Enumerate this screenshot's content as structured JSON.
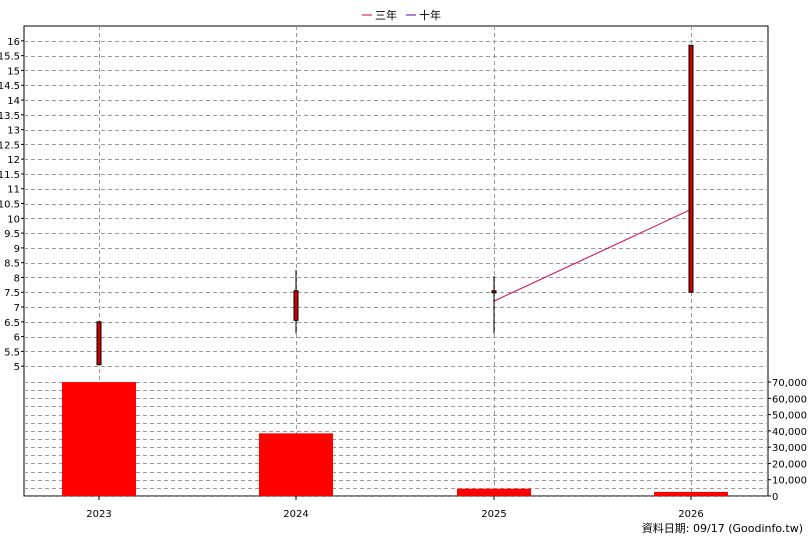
{
  "legend": [
    {
      "label": "三年",
      "color": "#cc0055"
    },
    {
      "label": "十年",
      "color": "#6600aa"
    }
  ],
  "footer": {
    "date_text": "資料日期: 09/17  (Goodinfo.tw)"
  },
  "chart_data": {
    "type": "candlestick+bar",
    "categories": [
      "2023",
      "2024",
      "2025",
      "2026"
    ],
    "price_axis": {
      "ylim": [
        4.6,
        16.3
      ],
      "ticks": [
        "16",
        "15.5",
        "15",
        "14.5",
        "14",
        "13.5",
        "13",
        "12.5",
        "12",
        "11.5",
        "11",
        "10.5",
        "10",
        "9.5",
        "9",
        "8.5",
        "8",
        "7.5",
        "7",
        "6.5",
        "6",
        "5.5",
        "5"
      ]
    },
    "volume_axis": {
      "ylim": [
        0,
        72500
      ],
      "ticks": [
        "70,000",
        "60,000",
        "50,000",
        "40,000",
        "30,000",
        "20,000",
        "10,000",
        "0"
      ]
    },
    "candles": [
      {
        "x": "2023",
        "open": 5.05,
        "close": 6.5,
        "high": 6.5,
        "low": 5.05,
        "color": "#cc0000"
      },
      {
        "x": "2024",
        "open": 6.55,
        "close": 7.55,
        "high": 8.25,
        "low": 6.1,
        "color": "#cc0000"
      },
      {
        "x": "2025",
        "open": 7.5,
        "close": 7.55,
        "high": 8.05,
        "low": 6.1,
        "color": "#cc0000"
      },
      {
        "x": "2026",
        "open": 7.5,
        "close": 15.85,
        "high": 15.85,
        "low": 7.5,
        "color": "#cc0000"
      }
    ],
    "volumes": [
      {
        "x": "2023",
        "value": 70000
      },
      {
        "x": "2024",
        "value": 38500
      },
      {
        "x": "2025",
        "value": 4500
      },
      {
        "x": "2026",
        "value": 2500
      }
    ],
    "series": [
      {
        "name": "三年",
        "color": "#cc0055",
        "points": [
          {
            "x": "2025",
            "y": 7.2
          },
          {
            "x": "2026",
            "y": 10.3
          }
        ]
      }
    ],
    "grid": true
  }
}
